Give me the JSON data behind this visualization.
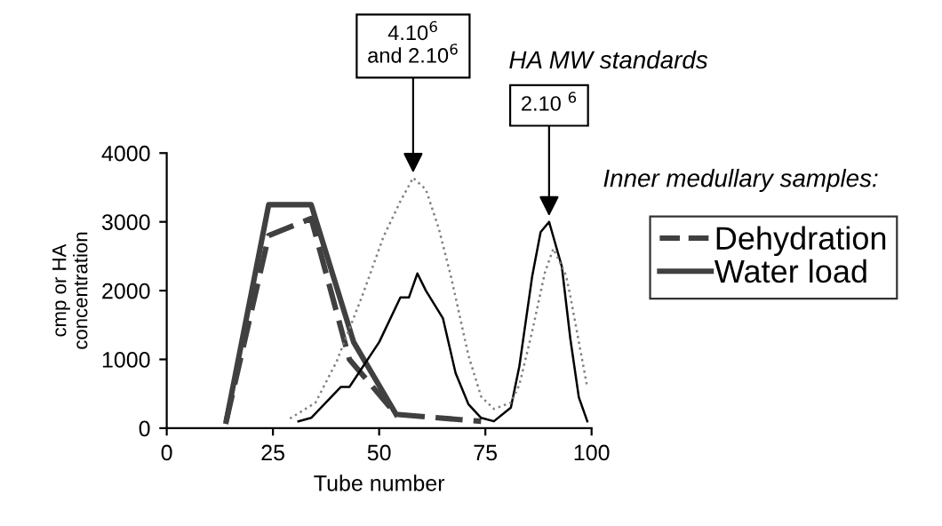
{
  "chart_data": {
    "type": "line",
    "xlabel": "Tube number",
    "ylabel": "cmp or HA\nconcentration",
    "xlim": [
      0,
      100
    ],
    "ylim": [
      0,
      4000
    ],
    "xticks": [
      0,
      25,
      50,
      75,
      100
    ],
    "yticks": [
      0,
      1000,
      2000,
      3000,
      4000
    ],
    "grid": false,
    "legend": "right",
    "legend_title": "Inner medullary samples:",
    "marker": "none",
    "series": [
      {
        "name": "Dehydration",
        "color": "#404040",
        "line_style": "dashed",
        "x": [
          14,
          24,
          34,
          43,
          54,
          74
        ],
        "values": [
          100,
          2800,
          3050,
          1000,
          200,
          100
        ]
      },
      {
        "name": "Water load",
        "color": "#404040",
        "line_style": "solid",
        "x": [
          14,
          24,
          34,
          44,
          54
        ],
        "values": [
          100,
          3250,
          3250,
          1250,
          200
        ]
      },
      {
        "color": "#000000",
        "line_style": "solid",
        "x": [
          31,
          34,
          41,
          43,
          50,
          55,
          57,
          59,
          61,
          65,
          68,
          71,
          74,
          77,
          81,
          83,
          86,
          88,
          90,
          93,
          95,
          97,
          99
        ],
        "values": [
          100,
          150,
          600,
          600,
          1250,
          1900,
          1900,
          2250,
          2000,
          1600,
          800,
          350,
          150,
          100,
          300,
          900,
          2200,
          2850,
          3000,
          2350,
          1300,
          450,
          100
        ]
      },
      {
        "color": "#808080",
        "line_style": "dotted",
        "x": [
          29,
          35,
          40,
          46,
          51,
          55,
          58,
          61,
          64,
          67,
          71,
          74,
          77,
          81,
          83,
          86,
          89,
          91,
          94,
          95,
          99
        ],
        "values": [
          140,
          370,
          970,
          1920,
          2780,
          3300,
          3640,
          3470,
          2910,
          2180,
          1060,
          460,
          280,
          370,
          630,
          1400,
          2260,
          2610,
          2220,
          1920,
          590
        ]
      }
    ],
    "annotations": [
      {
        "text": "4.10$^{6}$\nand 2.10$^{6}$",
        "x": 58,
        "y": 3640
      },
      {
        "text": "2.10 $^{6}$",
        "x": 90,
        "y": 3010
      },
      "HA MW standards"
    ]
  }
}
